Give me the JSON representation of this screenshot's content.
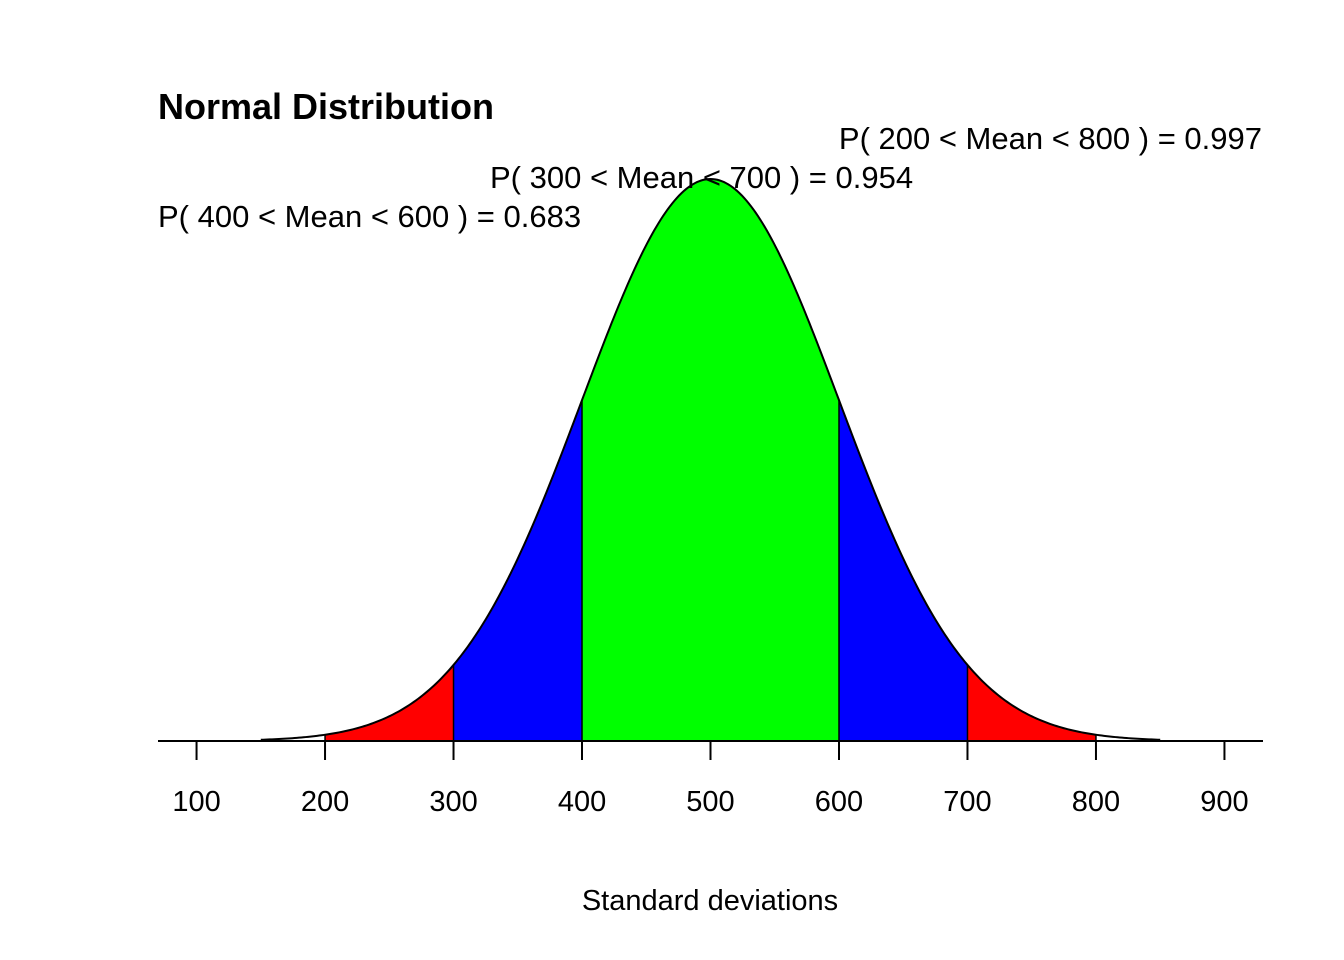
{
  "chart_data": {
    "type": "area",
    "title": "Normal Distribution",
    "xlabel": "Standard deviations",
    "ylabel": "",
    "distribution": {
      "mean": 500,
      "sd": 100
    },
    "xlim": [
      70,
      930
    ],
    "x_ticks": [
      100,
      200,
      300,
      400,
      500,
      600,
      700,
      800,
      900
    ],
    "x_tick_labels": [
      "100",
      "200",
      "300",
      "400",
      "500",
      "600",
      "700",
      "800",
      "900"
    ],
    "y_axis_shown": false,
    "grid": false,
    "legend": "none",
    "regions": [
      {
        "from": 200,
        "to": 300,
        "color": "#ff0000"
      },
      {
        "from": 300,
        "to": 400,
        "color": "#0000ff"
      },
      {
        "from": 400,
        "to": 600,
        "color": "#00ff00"
      },
      {
        "from": 600,
        "to": 700,
        "color": "#0000ff"
      },
      {
        "from": 700,
        "to": 800,
        "color": "#ff0000"
      }
    ],
    "annotations": [
      {
        "text": "P( 200 < Mean < 800 ) = 0.997",
        "lower": 200,
        "upper": 800,
        "probability": 0.997
      },
      {
        "text": "P( 300 < Mean < 700 ) = 0.954",
        "lower": 300,
        "upper": 700,
        "probability": 0.954
      },
      {
        "text": "P( 400 < Mean < 600 ) = 0.683",
        "lower": 400,
        "upper": 600,
        "probability": 0.683
      }
    ]
  },
  "colors": {
    "background": "#ffffff",
    "curve": "#000000",
    "outer_band": "#ff0000",
    "middle_band": "#0000ff",
    "inner_band": "#00ff00"
  }
}
